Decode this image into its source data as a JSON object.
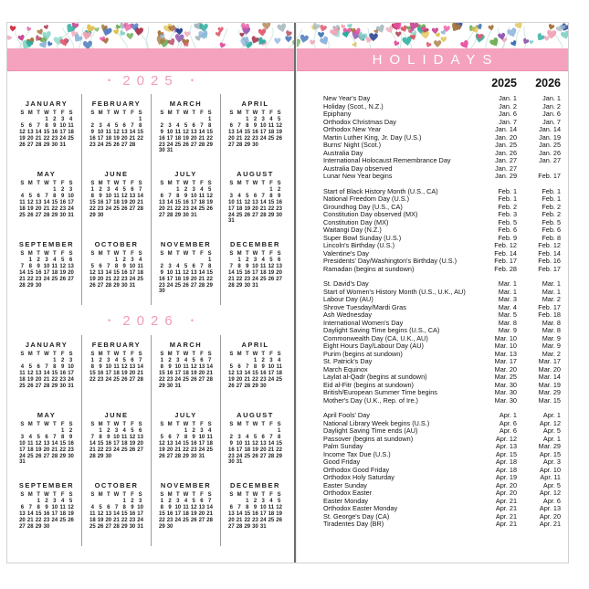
{
  "meta": {
    "dot": "•"
  },
  "colors": {
    "banner_pink": "#f4a2bd",
    "year_label_pink": "#ef9cb8",
    "branch_teal": "#cde6df",
    "heart_palette": [
      "#cf3648",
      "#e05a70",
      "#f0a3b7",
      "#e84f9e",
      "#a83a52",
      "#2aab9e",
      "#86d3c6",
      "#3a6fb5",
      "#8db3dc",
      "#2a4390",
      "#6fae57",
      "#dfc04a",
      "#8e55ae",
      "#c23488",
      "#a8763f",
      "#9fb4b8"
    ]
  },
  "banner": {
    "holidays_title": "HOLIDAYS"
  },
  "calendar_pages": {
    "weekday_header": [
      "S",
      "M",
      "T",
      "W",
      "T",
      "F",
      "S"
    ],
    "years": [
      {
        "label": "2025",
        "months": [
          {
            "name": "JANUARY",
            "first": 3,
            "days": 31
          },
          {
            "name": "FEBRUARY",
            "first": 6,
            "days": 28
          },
          {
            "name": "MARCH",
            "first": 6,
            "days": 31
          },
          {
            "name": "APRIL",
            "first": 2,
            "days": 30
          },
          {
            "name": "MAY",
            "first": 4,
            "days": 31
          },
          {
            "name": "JUNE",
            "first": 0,
            "days": 30
          },
          {
            "name": "JULY",
            "first": 2,
            "days": 31
          },
          {
            "name": "AUGUST",
            "first": 5,
            "days": 31
          },
          {
            "name": "SEPTEMBER",
            "first": 1,
            "days": 30
          },
          {
            "name": "OCTOBER",
            "first": 3,
            "days": 31
          },
          {
            "name": "NOVEMBER",
            "first": 6,
            "days": 30
          },
          {
            "name": "DECEMBER",
            "first": 1,
            "days": 31
          }
        ]
      },
      {
        "label": "2026",
        "months": [
          {
            "name": "JANUARY",
            "first": 4,
            "days": 31
          },
          {
            "name": "FEBRUARY",
            "first": 0,
            "days": 28
          },
          {
            "name": "MARCH",
            "first": 0,
            "days": 31
          },
          {
            "name": "APRIL",
            "first": 3,
            "days": 30
          },
          {
            "name": "MAY",
            "first": 5,
            "days": 31
          },
          {
            "name": "JUNE",
            "first": 1,
            "days": 30
          },
          {
            "name": "JULY",
            "first": 3,
            "days": 31
          },
          {
            "name": "AUGUST",
            "first": 6,
            "days": 31
          },
          {
            "name": "SEPTEMBER",
            "first": 2,
            "days": 30
          },
          {
            "name": "OCTOBER",
            "first": 4,
            "days": 31
          },
          {
            "name": "NOVEMBER",
            "first": 0,
            "days": 30
          },
          {
            "name": "DECEMBER",
            "first": 2,
            "days": 31
          }
        ]
      }
    ]
  },
  "holidays": {
    "col_headers": [
      "2025",
      "2026"
    ],
    "groups": [
      {
        "rows": [
          {
            "name": "New Year's Day",
            "d2025": "Jan. 1",
            "d2026": "Jan. 1"
          },
          {
            "name": "Holiday (Scot., N.Z.)",
            "d2025": "Jan. 2",
            "d2026": "Jan. 2"
          },
          {
            "name": "Epiphany",
            "d2025": "Jan. 6",
            "d2026": "Jan. 6"
          },
          {
            "name": "Orthodox Christmas Day",
            "d2025": "Jan. 7",
            "d2026": "Jan. 7"
          },
          {
            "name": "Orthodox New Year",
            "d2025": "Jan. 14",
            "d2026": "Jan. 14"
          },
          {
            "name": "Martin Luther King, Jr. Day (U.S.)",
            "d2025": "Jan. 20",
            "d2026": "Jan. 19"
          },
          {
            "name": "Burns' Night (Scot.)",
            "d2025": "Jan. 25",
            "d2026": "Jan. 25"
          },
          {
            "name": "Australia Day",
            "d2025": "Jan. 26",
            "d2026": "Jan. 26"
          },
          {
            "name": "International Holocaust Remembrance Day",
            "d2025": "Jan. 27",
            "d2026": "Jan. 27"
          },
          {
            "name": "Australia Day observed",
            "d2025": "Jan. 27",
            "d2026": ""
          },
          {
            "name": "Lunar New Year begins",
            "d2025": "Jan. 29",
            "d2026": "Feb. 17"
          }
        ]
      },
      {
        "rows": [
          {
            "name": "Start of Black History Month (U.S., CA)",
            "d2025": "Feb. 1",
            "d2026": "Feb. 1"
          },
          {
            "name": "National Freedom Day (U.S.)",
            "d2025": "Feb. 1",
            "d2026": "Feb. 1"
          },
          {
            "name": "Groundhog Day (U.S., CA)",
            "d2025": "Feb. 2",
            "d2026": "Feb. 2"
          },
          {
            "name": "Constitution Day observed (MX)",
            "d2025": "Feb. 3",
            "d2026": "Feb. 2"
          },
          {
            "name": "Constitution Day (MX)",
            "d2025": "Feb. 5",
            "d2026": "Feb. 5"
          },
          {
            "name": "Waitangi Day (N.Z.)",
            "d2025": "Feb. 6",
            "d2026": "Feb. 6"
          },
          {
            "name": "Super Bowl Sunday (U.S.)",
            "d2025": "Feb. 9",
            "d2026": "Feb. 8"
          },
          {
            "name": "Lincoln's Birthday (U.S.)",
            "d2025": "Feb. 12",
            "d2026": "Feb. 12"
          },
          {
            "name": "Valentine's Day",
            "d2025": "Feb. 14",
            "d2026": "Feb. 14"
          },
          {
            "name": "Presidents' Day/Washington's Birthday (U.S.)",
            "d2025": "Feb. 17",
            "d2026": "Feb. 16"
          },
          {
            "name": "Ramadan (begins at sundown)",
            "d2025": "Feb. 28",
            "d2026": "Feb. 17"
          }
        ]
      },
      {
        "rows": [
          {
            "name": "St. David's Day",
            "d2025": "Mar. 1",
            "d2026": "Mar. 1"
          },
          {
            "name": "Start of Women's History Month (U.S., U.K., AU)",
            "d2025": "Mar. 1",
            "d2026": "Mar. 1"
          },
          {
            "name": "Labour Day (AU)",
            "d2025": "Mar. 3",
            "d2026": "Mar. 2"
          },
          {
            "name": "Shrove Tuesday/Mardi Gras",
            "d2025": "Mar. 4",
            "d2026": "Feb. 17"
          },
          {
            "name": "Ash Wednesday",
            "d2025": "Mar. 5",
            "d2026": "Feb. 18"
          },
          {
            "name": "International Women's Day",
            "d2025": "Mar. 8",
            "d2026": "Mar. 8"
          },
          {
            "name": "Daylight Saving Time begins (U.S., CA)",
            "d2025": "Mar. 9",
            "d2026": "Mar. 8"
          },
          {
            "name": "Commonwealth Day (CA, U.K., AU)",
            "d2025": "Mar. 10",
            "d2026": "Mar. 9"
          },
          {
            "name": "Eight Hours Day/Labour Day (AU)",
            "d2025": "Mar. 10",
            "d2026": "Mar. 9"
          },
          {
            "name": "Purim (begins at sundown)",
            "d2025": "Mar. 13",
            "d2026": "Mar. 2"
          },
          {
            "name": "St. Patrick's Day",
            "d2025": "Mar. 17",
            "d2026": "Mar. 17"
          },
          {
            "name": "March Equinox",
            "d2025": "Mar. 20",
            "d2026": "Mar. 20"
          },
          {
            "name": "Laylat al-Qadr (begins at sundown)",
            "d2025": "Mar. 25",
            "d2026": "Mar. 14"
          },
          {
            "name": "Eid al-Fitr (begins at sundown)",
            "d2025": "Mar. 30",
            "d2026": "Mar. 19"
          },
          {
            "name": "British/European Summer Time begins",
            "d2025": "Mar. 30",
            "d2026": "Mar. 29"
          },
          {
            "name": "Mother's Day (U.K., Rep. of Ire.)",
            "d2025": "Mar. 30",
            "d2026": "Mar. 15"
          }
        ]
      },
      {
        "rows": [
          {
            "name": "April Fools' Day",
            "d2025": "Apr. 1",
            "d2026": "Apr. 1"
          },
          {
            "name": "National Library Week begins (U.S.)",
            "d2025": "Apr. 6",
            "d2026": "Apr. 12"
          },
          {
            "name": "Daylight Saving Time ends (AU)",
            "d2025": "Apr. 6",
            "d2026": "Apr. 5"
          },
          {
            "name": "Passover (begins at sundown)",
            "d2025": "Apr. 12",
            "d2026": "Apr. 1"
          },
          {
            "name": "Palm Sunday",
            "d2025": "Apr. 13",
            "d2026": "Mar. 29"
          },
          {
            "name": "Income Tax Due (U.S.)",
            "d2025": "Apr. 15",
            "d2026": "Apr. 15"
          },
          {
            "name": "Good Friday",
            "d2025": "Apr. 18",
            "d2026": "Apr. 3"
          },
          {
            "name": "Orthodox Good Friday",
            "d2025": "Apr. 18",
            "d2026": "Apr. 10"
          },
          {
            "name": "Orthodox Holy Saturday",
            "d2025": "Apr. 19",
            "d2026": "Apr. 11"
          },
          {
            "name": "Easter Sunday",
            "d2025": "Apr. 20",
            "d2026": "Apr. 5"
          },
          {
            "name": "Orthodox Easter",
            "d2025": "Apr. 20",
            "d2026": "Apr. 12"
          },
          {
            "name": "Easter Monday",
            "d2025": "Apr. 21",
            "d2026": "Apr. 6"
          },
          {
            "name": "Orthodox Easter Monday",
            "d2025": "Apr. 21",
            "d2026": "Apr. 13"
          },
          {
            "name": "St. George's Day (CA)",
            "d2025": "Apr. 21",
            "d2026": "Apr. 20"
          },
          {
            "name": "Tiradentes Day (BR)",
            "d2025": "Apr. 21",
            "d2026": "Apr. 21"
          }
        ]
      }
    ]
  }
}
